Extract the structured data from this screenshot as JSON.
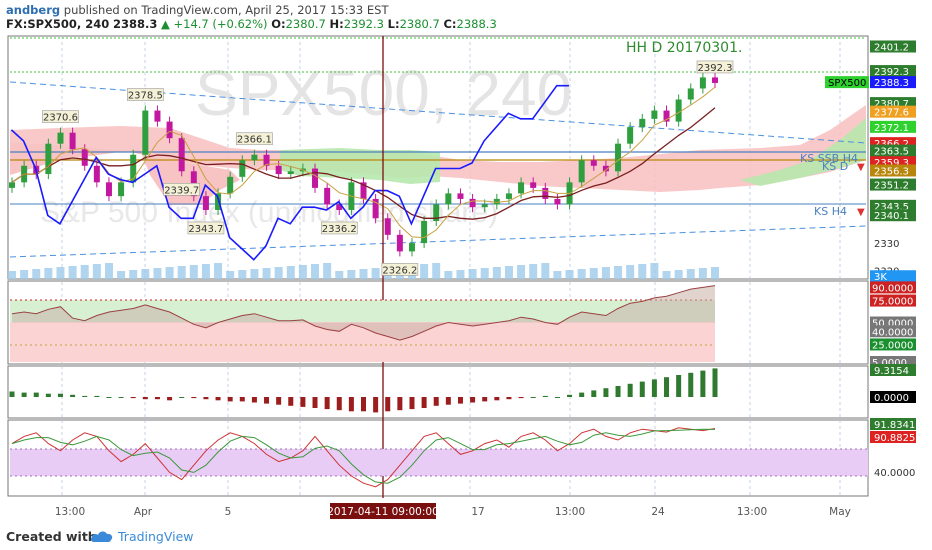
{
  "header": {
    "author": "andberg",
    "published": "published on TradingView.com, April 25, 2017 15:33 EST",
    "symbol": "FX:SPX500, 240",
    "last": "2388.3",
    "change": "+14.7 (+0.62%)",
    "o_label": "O:",
    "o": "2380.7",
    "h_label": "H:",
    "h": "2392.3",
    "l_label": "L:",
    "l": "2380.7",
    "c_label": "C:",
    "c": "2388.3"
  },
  "watermark": {
    "line1": "SPX500, 240",
    "line2": "S&P 500 Index (unmodified share)"
  },
  "annotations": {
    "hh_d": "HH D 20170301.",
    "ks_ssb_h4": "KS SSB H4",
    "ks_d": "KS D",
    "ks_h4": "KS H4",
    "peaks": [
      "2370.6",
      "2378.5",
      "2366.1",
      "2343.7",
      "2339.7",
      "2336.2",
      "2326.2",
      "2392.3"
    ]
  },
  "price_axis": {
    "labels": [
      "2401.2",
      "2392.3",
      "2388.3",
      "2380.7",
      "2377.6",
      "2372.1",
      "2366.2",
      "2363.5",
      "2359.3",
      "2356.3",
      "2351.2",
      "2343.5",
      "2340.1",
      "2330",
      "2320",
      "3K"
    ],
    "symbol_tag": "SPX500"
  },
  "rsi_axis": {
    "labels": [
      "90.0000",
      "75.0000",
      "50.0000",
      "40.0000",
      "25.0000",
      "5.0000"
    ]
  },
  "macd_axis": {
    "labels": [
      "9.3154",
      "0.0000"
    ]
  },
  "stoch_axis": {
    "labels": [
      "91.8341",
      "90.8825",
      "40.0000"
    ]
  },
  "time_axis": {
    "labels": [
      "13:00",
      "Apr",
      "5",
      "17",
      "13:00",
      "24",
      "13:00",
      "May"
    ],
    "cursor": "2017-04-11 09:00:00"
  },
  "footer": {
    "created": "Created with",
    "brand": "TradingView"
  },
  "colors": {
    "up": "#2e9e3e",
    "down": "#c2189f",
    "cloud_green": "#a8e6a0",
    "cloud_red": "#f6a8a8",
    "tenkan": "#1a1aff",
    "kijun": "#7a1f1f",
    "rsi_fill_red": "#fbd3d3",
    "rsi_fill_green": "#d7f0d2",
    "stoch_band": "#e8ccf6",
    "macd_up": "#2f7a2f",
    "macd_down": "#9b1d1d",
    "cursor_line": "#7a0f0f"
  },
  "chart_data": {
    "type": "line",
    "series": [
      {
        "name": "SPX500",
        "values": [
          2352,
          2358,
          2355,
          2366,
          2370,
          2364,
          2358,
          2352,
          2347,
          2352,
          2362,
          2378,
          2374,
          2368,
          2356,
          2347,
          2342,
          2348,
          2354,
          2360,
          2362,
          2358,
          2355,
          2356,
          2357,
          2350,
          2344,
          2342,
          2352,
          2346,
          2339,
          2333,
          2327,
          2330,
          2338,
          2344,
          2348,
          2346,
          2343,
          2344,
          2346,
          2348,
          2352,
          2350,
          2346,
          2344,
          2352,
          2360,
          2358,
          2356,
          2366,
          2372,
          2375,
          2378,
          2374,
          2382,
          2386,
          2390,
          2388
        ]
      }
    ],
    "ylim": [
      2317,
      2405
    ],
    "rsi_levels": [
      90,
      75,
      50,
      25
    ]
  }
}
